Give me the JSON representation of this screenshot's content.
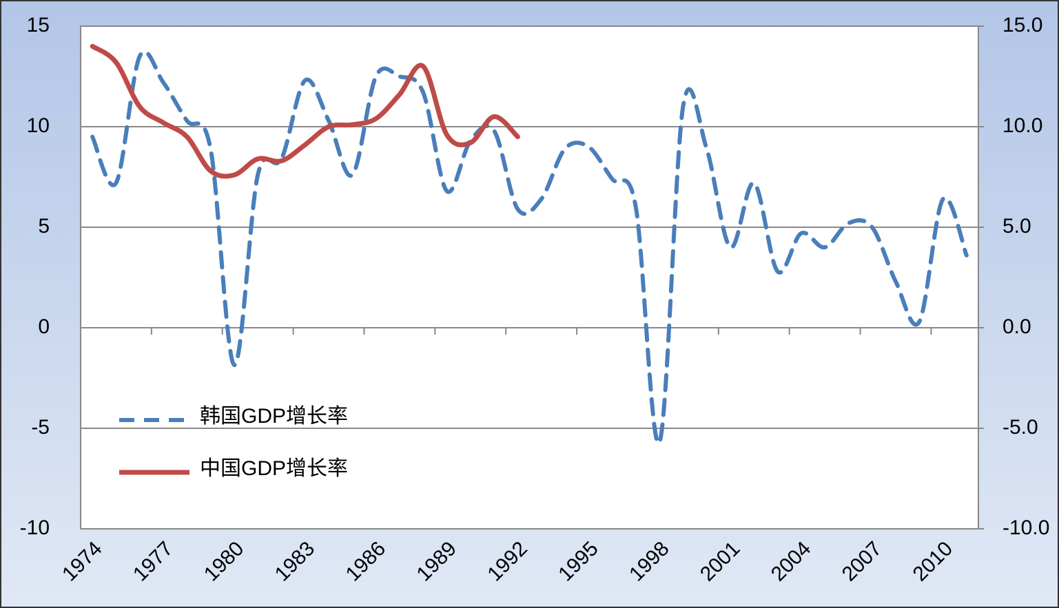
{
  "chart_data": {
    "type": "line",
    "categories": [
      "1974",
      null,
      null,
      "1977",
      null,
      null,
      "1980",
      null,
      null,
      "1983",
      null,
      null,
      "1986",
      null,
      null,
      "1989",
      null,
      null,
      "1992",
      null,
      null,
      "1995",
      null,
      null,
      "1998",
      null,
      null,
      "2001",
      null,
      null,
      "2004",
      null,
      null,
      "2007",
      null,
      null,
      "2010",
      null
    ],
    "series": [
      {
        "name": "韩国GDP增长率",
        "color": "#4a7ebb",
        "dash": true,
        "values": [
          9.5,
          7.2,
          13.5,
          12.2,
          10.3,
          8.9,
          -1.85,
          7.6,
          8.4,
          12.3,
          10.3,
          7.6,
          12.5,
          12.5,
          11.7,
          6.8,
          9.3,
          9.8,
          5.9,
          6.4,
          8.9,
          9.0,
          7.4,
          6.0,
          -5.7,
          11.0,
          8.9,
          4.0,
          7.2,
          2.8,
          4.7,
          4.0,
          5.2,
          5.0,
          2.3,
          0.3,
          6.4,
          3.6
        ]
      },
      {
        "name": "中国GDP增长率",
        "color": "#be4b48",
        "dash": false,
        "axis": "y2",
        "values": [
          14.0,
          13.2,
          11.0,
          10.2,
          9.5,
          7.8,
          7.6,
          8.4,
          8.3,
          9.1,
          10.0,
          10.1,
          10.4,
          11.6,
          13.0,
          9.6,
          9.2,
          10.5,
          9.5,
          null,
          null,
          null,
          null,
          null,
          null,
          null,
          null,
          null,
          null,
          null,
          null,
          null,
          null,
          null,
          null,
          null,
          null,
          null
        ]
      }
    ],
    "ylim": [
      -10,
      15
    ],
    "yticks": [
      -10,
      -5,
      0,
      5,
      10,
      15
    ],
    "y2lim": [
      -10,
      15
    ],
    "y2ticks": [
      {
        "value": -10,
        "label": "-10.0"
      },
      {
        "value": -5,
        "label": "-5.0"
      },
      {
        "value": 0,
        "label": "0.0"
      },
      {
        "value": 5,
        "label": "5.0"
      },
      {
        "value": 10,
        "label": "10.0"
      },
      {
        "value": 15,
        "label": "15.0"
      }
    ],
    "grid": true,
    "legend": "lower-left"
  }
}
